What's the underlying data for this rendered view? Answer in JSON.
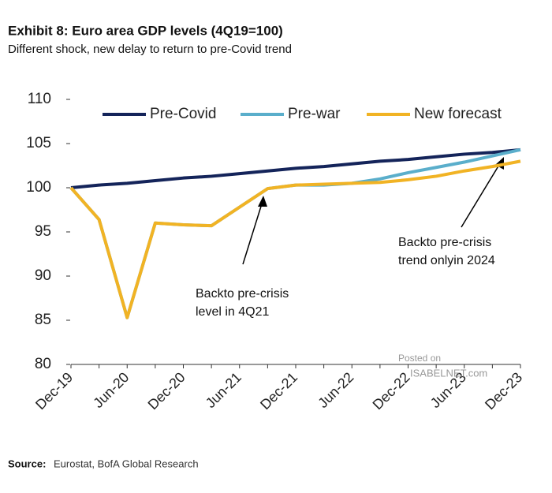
{
  "chart_data": {
    "type": "line",
    "title": "Exhibit 8: Euro area GDP levels (4Q19=100)",
    "subtitle": "Different shock, new delay to return to pre-Covid trend",
    "categories": [
      "Dec-19",
      null,
      "Jun-20",
      null,
      "Dec-20",
      null,
      "Jun-21",
      null,
      "Dec-21",
      null,
      "Jun-22",
      null,
      "Dec-22",
      null,
      "Jun-23",
      null,
      "Dec-23"
    ],
    "series": [
      {
        "name": "Pre-Covid",
        "color": "#14245a",
        "values": [
          100,
          100.3,
          100.5,
          100.8,
          101.1,
          101.3,
          101.6,
          101.9,
          102.2,
          102.4,
          102.7,
          103.0,
          103.2,
          103.5,
          103.8,
          104.0,
          104.3
        ]
      },
      {
        "name": "Pre-war",
        "color": "#5aaecb",
        "values": [
          100,
          96.4,
          85.3,
          96.0,
          95.8,
          95.7,
          97.8,
          99.9,
          100.3,
          100.3,
          100.5,
          101.0,
          101.7,
          102.3,
          102.9,
          103.6,
          104.3
        ]
      },
      {
        "name": "New forecast",
        "color": "#f1b324",
        "values": [
          100,
          96.4,
          85.3,
          96.0,
          95.8,
          95.7,
          97.8,
          99.9,
          100.3,
          100.4,
          100.5,
          100.6,
          100.9,
          101.3,
          101.9,
          102.4,
          103.0
        ]
      }
    ],
    "ylim": [
      80,
      110
    ],
    "yticks": [
      80,
      85,
      90,
      95,
      100,
      105,
      110
    ],
    "grid": false,
    "legend": "top",
    "annotations": [
      [
        "Backto pre-crisis",
        "level in 4Q21"
      ],
      [
        "Backto pre-crisis",
        "trend onlyin 2024"
      ]
    ],
    "watermark": [
      "Posted on",
      "ISABELNET.com"
    ],
    "source_label": "Source:",
    "source": "Eurostat, BofA Global Research"
  }
}
